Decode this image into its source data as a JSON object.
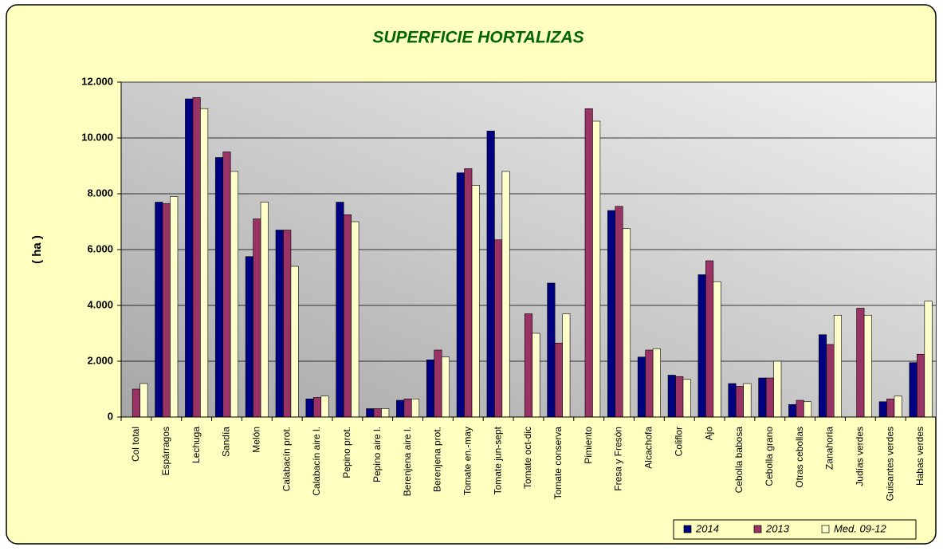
{
  "chart_data": {
    "type": "bar",
    "title": "SUPERFICIE HORTALIZAS",
    "y_label": "( ha )",
    "categories": [
      "Col total",
      "Espárragos",
      "Lechuga",
      "Sandía",
      "Melón",
      "Calabacín prot.",
      "Calabacín aire l.",
      "Pepino prot.",
      "Pepino aire l.",
      "Berenjena aire l.",
      "Berenjena prot.",
      "Tomate en.-may",
      "Tomate jun-sept",
      "Tomate oct-dic",
      "Tomate conserva",
      "Pimiento",
      "Fresa y Fresón",
      "Alcachofa",
      "Coliflor",
      "Ajo",
      "Cebolla babosa",
      "Cebolla grano",
      "Otras cebollas",
      "Zanahoria",
      "Judías verdes",
      "Guisantes verdes",
      "Habas verdes"
    ],
    "series": [
      {
        "name": "2014",
        "color": "#000080",
        "values": [
          null,
          7700,
          11400,
          9300,
          5750,
          6700,
          650,
          7700,
          300,
          600,
          2050,
          8750,
          10250,
          null,
          4800,
          null,
          7400,
          2150,
          1500,
          5100,
          1200,
          1400,
          450,
          2950,
          null,
          550,
          1950
        ]
      },
      {
        "name": "2013",
        "color": "#993366",
        "values": [
          1000,
          7650,
          11450,
          9500,
          7100,
          6700,
          700,
          7250,
          300,
          650,
          2400,
          8900,
          6350,
          3700,
          2650,
          11050,
          7550,
          2400,
          1450,
          5600,
          1100,
          1400,
          600,
          2600,
          3900,
          650,
          2250
        ]
      },
      {
        "name": "Med. 09-12",
        "color": "#ffffcc",
        "values": [
          1200,
          7900,
          11050,
          8800,
          7700,
          5400,
          750,
          7000,
          300,
          650,
          2150,
          8300,
          8800,
          3000,
          3700,
          10600,
          6750,
          2450,
          1350,
          4850,
          1200,
          2000,
          550,
          3650,
          3650,
          750,
          4150
        ]
      }
    ],
    "ylim": [
      0,
      12000
    ],
    "yticks": [
      0,
      {
        "value": 2000,
        "label": "2.000"
      },
      {
        "value": 4000,
        "label": "4.000"
      },
      {
        "value": 6000,
        "label": "6.000"
      },
      {
        "value": 8000,
        "label": "8.000"
      },
      {
        "value": 10000,
        "label": "10.000"
      },
      {
        "value": 12000,
        "label": "12.000"
      }
    ],
    "grid": true,
    "legend": "bottom-right"
  }
}
